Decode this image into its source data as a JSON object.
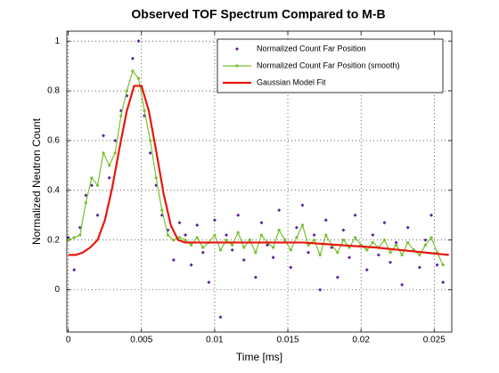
{
  "chart_data": {
    "type": "scatter_line",
    "title": "Observed TOF Spectrum Compared to M-B",
    "xlabel": "Time [ms]",
    "ylabel": "Normalized Neutron Count",
    "xlim": [
      -0.0001,
      0.0262
    ],
    "ylim": [
      -0.17,
      1.04
    ],
    "xticks": [
      0,
      0.005,
      0.01,
      0.015,
      0.02,
      0.025
    ],
    "yticks": [
      0,
      0.2,
      0.4,
      0.6,
      0.8,
      1
    ],
    "grid": true,
    "legend": "upper right",
    "series": [
      {
        "name": "Normalized Count Far Position",
        "kind": "scatter",
        "color": "#5b1fa3",
        "x": [
          0,
          0.0004,
          0.0008,
          0.0012,
          0.0016,
          0.002,
          0.0024,
          0.0028,
          0.0032,
          0.0036,
          0.004,
          0.0044,
          0.0048,
          0.0052,
          0.0056,
          0.006,
          0.0064,
          0.0068,
          0.0072,
          0.0076,
          0.008,
          0.0084,
          0.0088,
          0.0092,
          0.0096,
          0.01,
          0.0104,
          0.0108,
          0.0112,
          0.0116,
          0.012,
          0.0124,
          0.0128,
          0.0132,
          0.0136,
          0.014,
          0.0144,
          0.0148,
          0.0152,
          0.0156,
          0.016,
          0.0164,
          0.0168,
          0.0172,
          0.0176,
          0.018,
          0.0184,
          0.0188,
          0.0192,
          0.0196,
          0.02,
          0.0204,
          0.0208,
          0.0212,
          0.0216,
          0.022,
          0.0224,
          0.0228,
          0.0232,
          0.0236,
          0.024,
          0.0244,
          0.0248,
          0.0252,
          0.0256
        ],
        "values": [
          0.21,
          0.08,
          0.25,
          0.38,
          0.42,
          0.3,
          0.62,
          0.45,
          0.6,
          0.72,
          0.78,
          0.93,
          1.0,
          0.7,
          0.55,
          0.42,
          0.3,
          0.24,
          0.12,
          0.27,
          0.22,
          0.1,
          0.26,
          0.15,
          0.03,
          0.28,
          -0.11,
          0.22,
          0.16,
          0.3,
          0.12,
          0.2,
          0.05,
          0.27,
          0.18,
          0.13,
          0.32,
          0.2,
          0.09,
          0.25,
          0.34,
          0.15,
          0.22,
          0.0,
          0.28,
          0.17,
          0.05,
          0.24,
          0.13,
          0.3,
          0.18,
          0.08,
          0.22,
          0.14,
          0.27,
          0.11,
          0.19,
          0.02,
          0.25,
          0.16,
          0.09,
          0.2,
          0.3,
          0.1,
          0.03
        ]
      },
      {
        "name": "Normalized Count Far Position (smooth)",
        "kind": "line-markers",
        "color": "#78c030",
        "x": [
          0,
          0.0004,
          0.0008,
          0.0012,
          0.0016,
          0.002,
          0.0024,
          0.0028,
          0.0032,
          0.0036,
          0.004,
          0.0044,
          0.0048,
          0.0052,
          0.0056,
          0.006,
          0.0064,
          0.0068,
          0.0072,
          0.0076,
          0.008,
          0.0084,
          0.0088,
          0.0092,
          0.0096,
          0.01,
          0.0104,
          0.0108,
          0.0112,
          0.0116,
          0.012,
          0.0124,
          0.0128,
          0.0132,
          0.0136,
          0.014,
          0.0144,
          0.0148,
          0.0152,
          0.0156,
          0.016,
          0.0164,
          0.0168,
          0.0172,
          0.0176,
          0.018,
          0.0184,
          0.0188,
          0.0192,
          0.0196,
          0.02,
          0.0204,
          0.0208,
          0.0212,
          0.0216,
          0.022,
          0.0224,
          0.0228,
          0.0232,
          0.0236,
          0.024,
          0.0244,
          0.0248,
          0.0252,
          0.0256
        ],
        "values": [
          0.2,
          0.21,
          0.22,
          0.35,
          0.45,
          0.42,
          0.55,
          0.5,
          0.55,
          0.7,
          0.8,
          0.88,
          0.85,
          0.72,
          0.6,
          0.45,
          0.32,
          0.22,
          0.2,
          0.21,
          0.2,
          0.18,
          0.21,
          0.17,
          0.19,
          0.22,
          0.16,
          0.2,
          0.18,
          0.23,
          0.17,
          0.2,
          0.15,
          0.22,
          0.19,
          0.17,
          0.24,
          0.2,
          0.16,
          0.21,
          0.26,
          0.18,
          0.2,
          0.14,
          0.22,
          0.18,
          0.15,
          0.2,
          0.17,
          0.21,
          0.18,
          0.16,
          0.19,
          0.17,
          0.2,
          0.15,
          0.18,
          0.14,
          0.19,
          0.16,
          0.14,
          0.18,
          0.21,
          0.15,
          0.1
        ]
      },
      {
        "name": "Gaussian Model Fit",
        "kind": "line",
        "color": "#e8160c",
        "x": [
          0,
          0.0005,
          0.001,
          0.0015,
          0.002,
          0.0025,
          0.003,
          0.0035,
          0.004,
          0.0045,
          0.005,
          0.0055,
          0.006,
          0.0065,
          0.007,
          0.0075,
          0.008,
          0.0085,
          0.009,
          0.0095,
          0.01,
          0.0105,
          0.011,
          0.0115,
          0.012,
          0.0125,
          0.013,
          0.0135,
          0.014,
          0.0145,
          0.015,
          0.0155,
          0.016,
          0.0165,
          0.017,
          0.0175,
          0.018,
          0.0185,
          0.019,
          0.0195,
          0.02,
          0.0205,
          0.021,
          0.0215,
          0.022,
          0.0225,
          0.023,
          0.0235,
          0.024,
          0.0245,
          0.025,
          0.0255,
          0.026
        ],
        "values": [
          0.14,
          0.14,
          0.15,
          0.17,
          0.2,
          0.28,
          0.41,
          0.57,
          0.72,
          0.82,
          0.82,
          0.72,
          0.56,
          0.39,
          0.26,
          0.2,
          0.19,
          0.19,
          0.19,
          0.19,
          0.19,
          0.19,
          0.19,
          0.19,
          0.19,
          0.19,
          0.19,
          0.19,
          0.19,
          0.19,
          0.19,
          0.19,
          0.19,
          0.188,
          0.186,
          0.184,
          0.182,
          0.18,
          0.178,
          0.176,
          0.174,
          0.172,
          0.17,
          0.167,
          0.164,
          0.161,
          0.158,
          0.155,
          0.152,
          0.149,
          0.146,
          0.143,
          0.14
        ]
      }
    ]
  }
}
